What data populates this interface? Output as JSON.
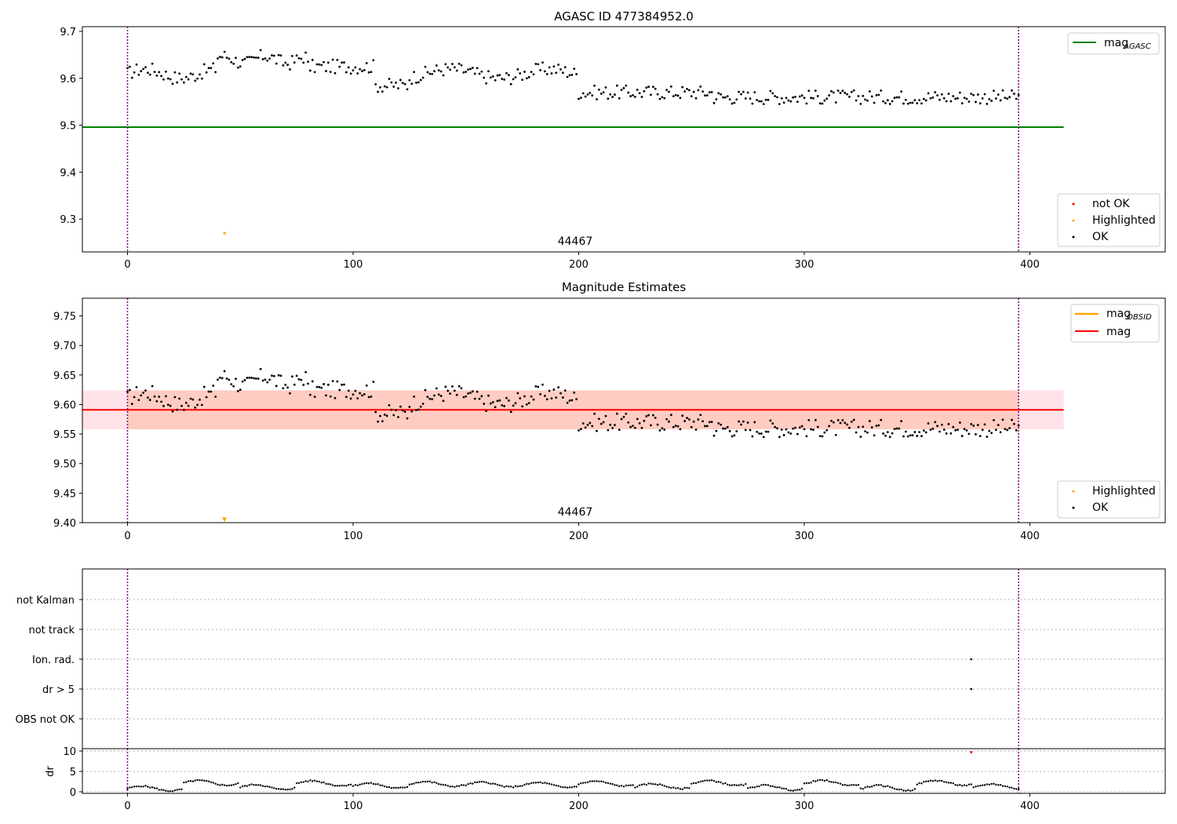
{
  "chart_data": [
    {
      "type": "scatter",
      "title": "AGASC ID 477384952.0",
      "xlim": [
        -20,
        460
      ],
      "ylim": [
        9.23,
        9.71
      ],
      "xticks": [
        0,
        100,
        200,
        300,
        400
      ],
      "yticks": [
        "9.3",
        "9.4",
        "9.5",
        "9.6",
        "9.7"
      ],
      "annotation": "44467",
      "vlines": [
        0,
        395
      ],
      "hline": {
        "y": 9.496,
        "x": [
          -20,
          415
        ]
      },
      "legend_top": {
        "label": "mag",
        "sub": "AGASC",
        "color": "#008000"
      },
      "legend_bottom": [
        {
          "label": "not OK",
          "color": "#ff0000"
        },
        {
          "label": "Highlighted",
          "color": "#ffa500"
        },
        {
          "label": "OK",
          "color": "#000000"
        }
      ],
      "highlighted": [
        {
          "x": 43,
          "y": 9.27
        }
      ]
    },
    {
      "type": "scatter",
      "title": "Magnitude Estimates",
      "xlim": [
        -20,
        460
      ],
      "ylim": [
        9.4,
        9.78
      ],
      "xticks": [
        0,
        100,
        200,
        300,
        400
      ],
      "yticks": [
        "9.40",
        "9.45",
        "9.50",
        "9.55",
        "9.60",
        "9.65",
        "9.70",
        "9.75"
      ],
      "annotation": "44467",
      "vlines": [
        0,
        395
      ],
      "mag_line": 9.591,
      "band": [
        9.558,
        9.624
      ],
      "band_x": [
        -20,
        415
      ],
      "legend_top": [
        {
          "label": "mag",
          "sub": "OBSID",
          "color": "#ffa500"
        },
        {
          "label": "mag",
          "sub": "",
          "color": "#ff0000"
        }
      ],
      "legend_bottom": [
        {
          "label": "Highlighted",
          "color": "#ffa500"
        },
        {
          "label": "OK",
          "color": "#000000"
        }
      ],
      "highlighted_arrow": {
        "x": 43,
        "y": 9.405
      }
    },
    {
      "type": "scatter",
      "title": "",
      "categories": [
        "not Kalman",
        "not track",
        "Ion. rad.",
        "dr > 5",
        "OBS not OK"
      ],
      "flag_points": [
        {
          "category": "Ion. rad.",
          "x": 374
        },
        {
          "category": "dr > 5",
          "x": 374
        }
      ],
      "vlines": [
        0,
        395
      ],
      "xlim": [
        -20,
        460
      ]
    },
    {
      "type": "scatter",
      "title": "",
      "ylabel": "dr",
      "yticks": [
        "0",
        "5",
        "10"
      ],
      "ylim": [
        -0.5,
        11
      ],
      "xticks": [
        0,
        100,
        200,
        300,
        400
      ],
      "xlim": [
        -20,
        460
      ],
      "vlines": [
        0,
        395
      ],
      "not_ok_point": {
        "x": 374,
        "y": 9.7
      }
    }
  ]
}
